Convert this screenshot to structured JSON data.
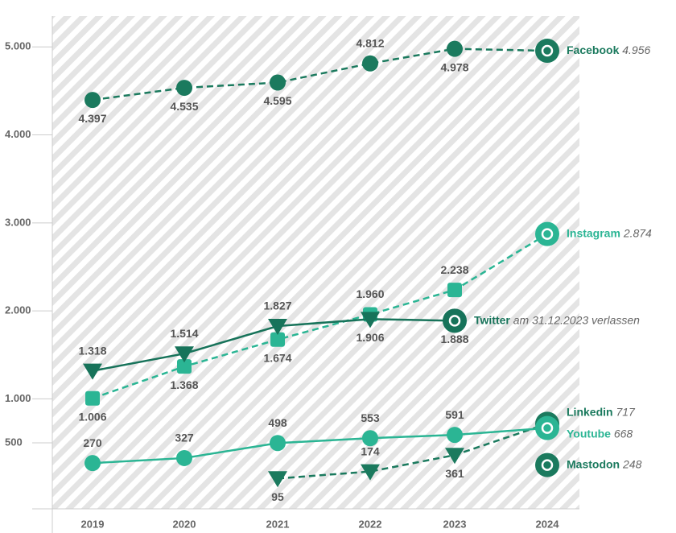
{
  "chart_data": {
    "type": "line",
    "categories": [
      "2019",
      "2020",
      "2021",
      "2022",
      "2023",
      "2024"
    ],
    "ylim": [
      -250,
      5350
    ],
    "yticks": [
      500,
      {
        "value": 1000,
        "label": "1.000"
      },
      {
        "value": 2000,
        "label": "2.000"
      },
      {
        "value": 3000,
        "label": "3.000"
      },
      {
        "value": 4000,
        "label": "4.000"
      },
      {
        "value": 5000,
        "label": "5.000"
      }
    ],
    "series": [
      {
        "name": "Facebook",
        "color": "#1b7a5e",
        "marker": "circle",
        "dashed": true,
        "values": [
          4397,
          4535,
          4595,
          4812,
          4978,
          4956
        ],
        "value_labels": [
          "4.397",
          "4.535",
          "4.595",
          "4.812",
          "4.978",
          "4.956"
        ]
      },
      {
        "name": "Instagram",
        "color": "#2bb594",
        "marker": "square",
        "dashed": true,
        "values": [
          1006,
          1368,
          1674,
          1960,
          2238,
          2874
        ],
        "value_labels": [
          "1.006",
          "1.368",
          "1.674",
          "1.960",
          "2.238",
          "2.874"
        ]
      },
      {
        "name": "Twitter",
        "color": "#17735a",
        "marker": "triangle",
        "dashed": false,
        "note": "am 31.12.2023 verlassen",
        "values": [
          1318,
          1514,
          1827,
          1906,
          1888,
          null
        ],
        "value_labels": [
          "1.318",
          "1.514",
          "1.827",
          "1.906",
          "1.888",
          null
        ]
      },
      {
        "name": "Linkedin",
        "color": "#1b7a5e",
        "marker": "triangle",
        "dashed": true,
        "values": [
          null,
          null,
          95,
          174,
          361,
          717
        ]
      },
      {
        "name": "Youtube",
        "color": "#2bb594",
        "marker": "circle",
        "dashed": false,
        "values": [
          270,
          327,
          498,
          553,
          591,
          668
        ]
      },
      {
        "name": "Mastodon",
        "color": "#1b7a5e",
        "marker": "circle",
        "dashed": false,
        "values": [
          null,
          null,
          null,
          null,
          null,
          248
        ]
      }
    ]
  }
}
